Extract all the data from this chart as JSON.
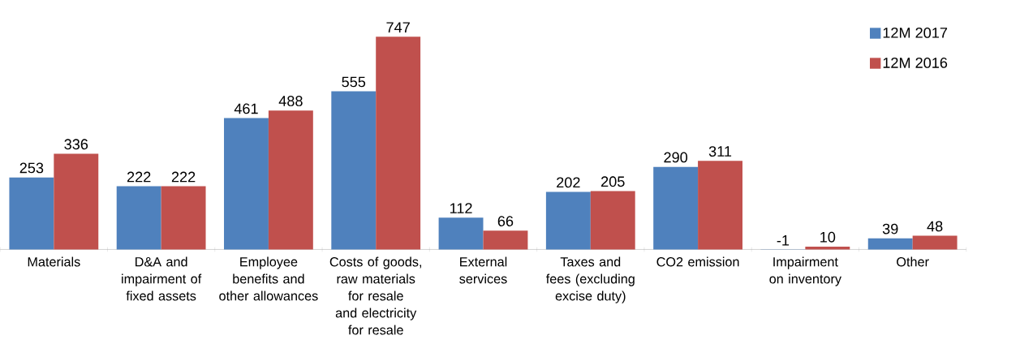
{
  "chart_data": {
    "type": "bar",
    "categories": [
      "Materials",
      "D&A and impairment of fixed assets",
      "Employee benefits and other allowances",
      "Costs of goods, raw materials for resale and electricity for resale",
      "External services",
      "Taxes and fees (excluding excise duty)",
      "CO2 emission",
      "Impairment on inventory",
      "Other"
    ],
    "series": [
      {
        "name": "12M 2017",
        "color": "#4f81bd",
        "values": [
          253,
          222,
          461,
          555,
          112,
          202,
          290,
          -1,
          39
        ]
      },
      {
        "name": "12M 2016",
        "color": "#c0504d",
        "values": [
          336,
          222,
          488,
          747,
          66,
          205,
          311,
          10,
          48
        ]
      }
    ],
    "data_labels": true,
    "legend": "top right",
    "grid": false
  }
}
